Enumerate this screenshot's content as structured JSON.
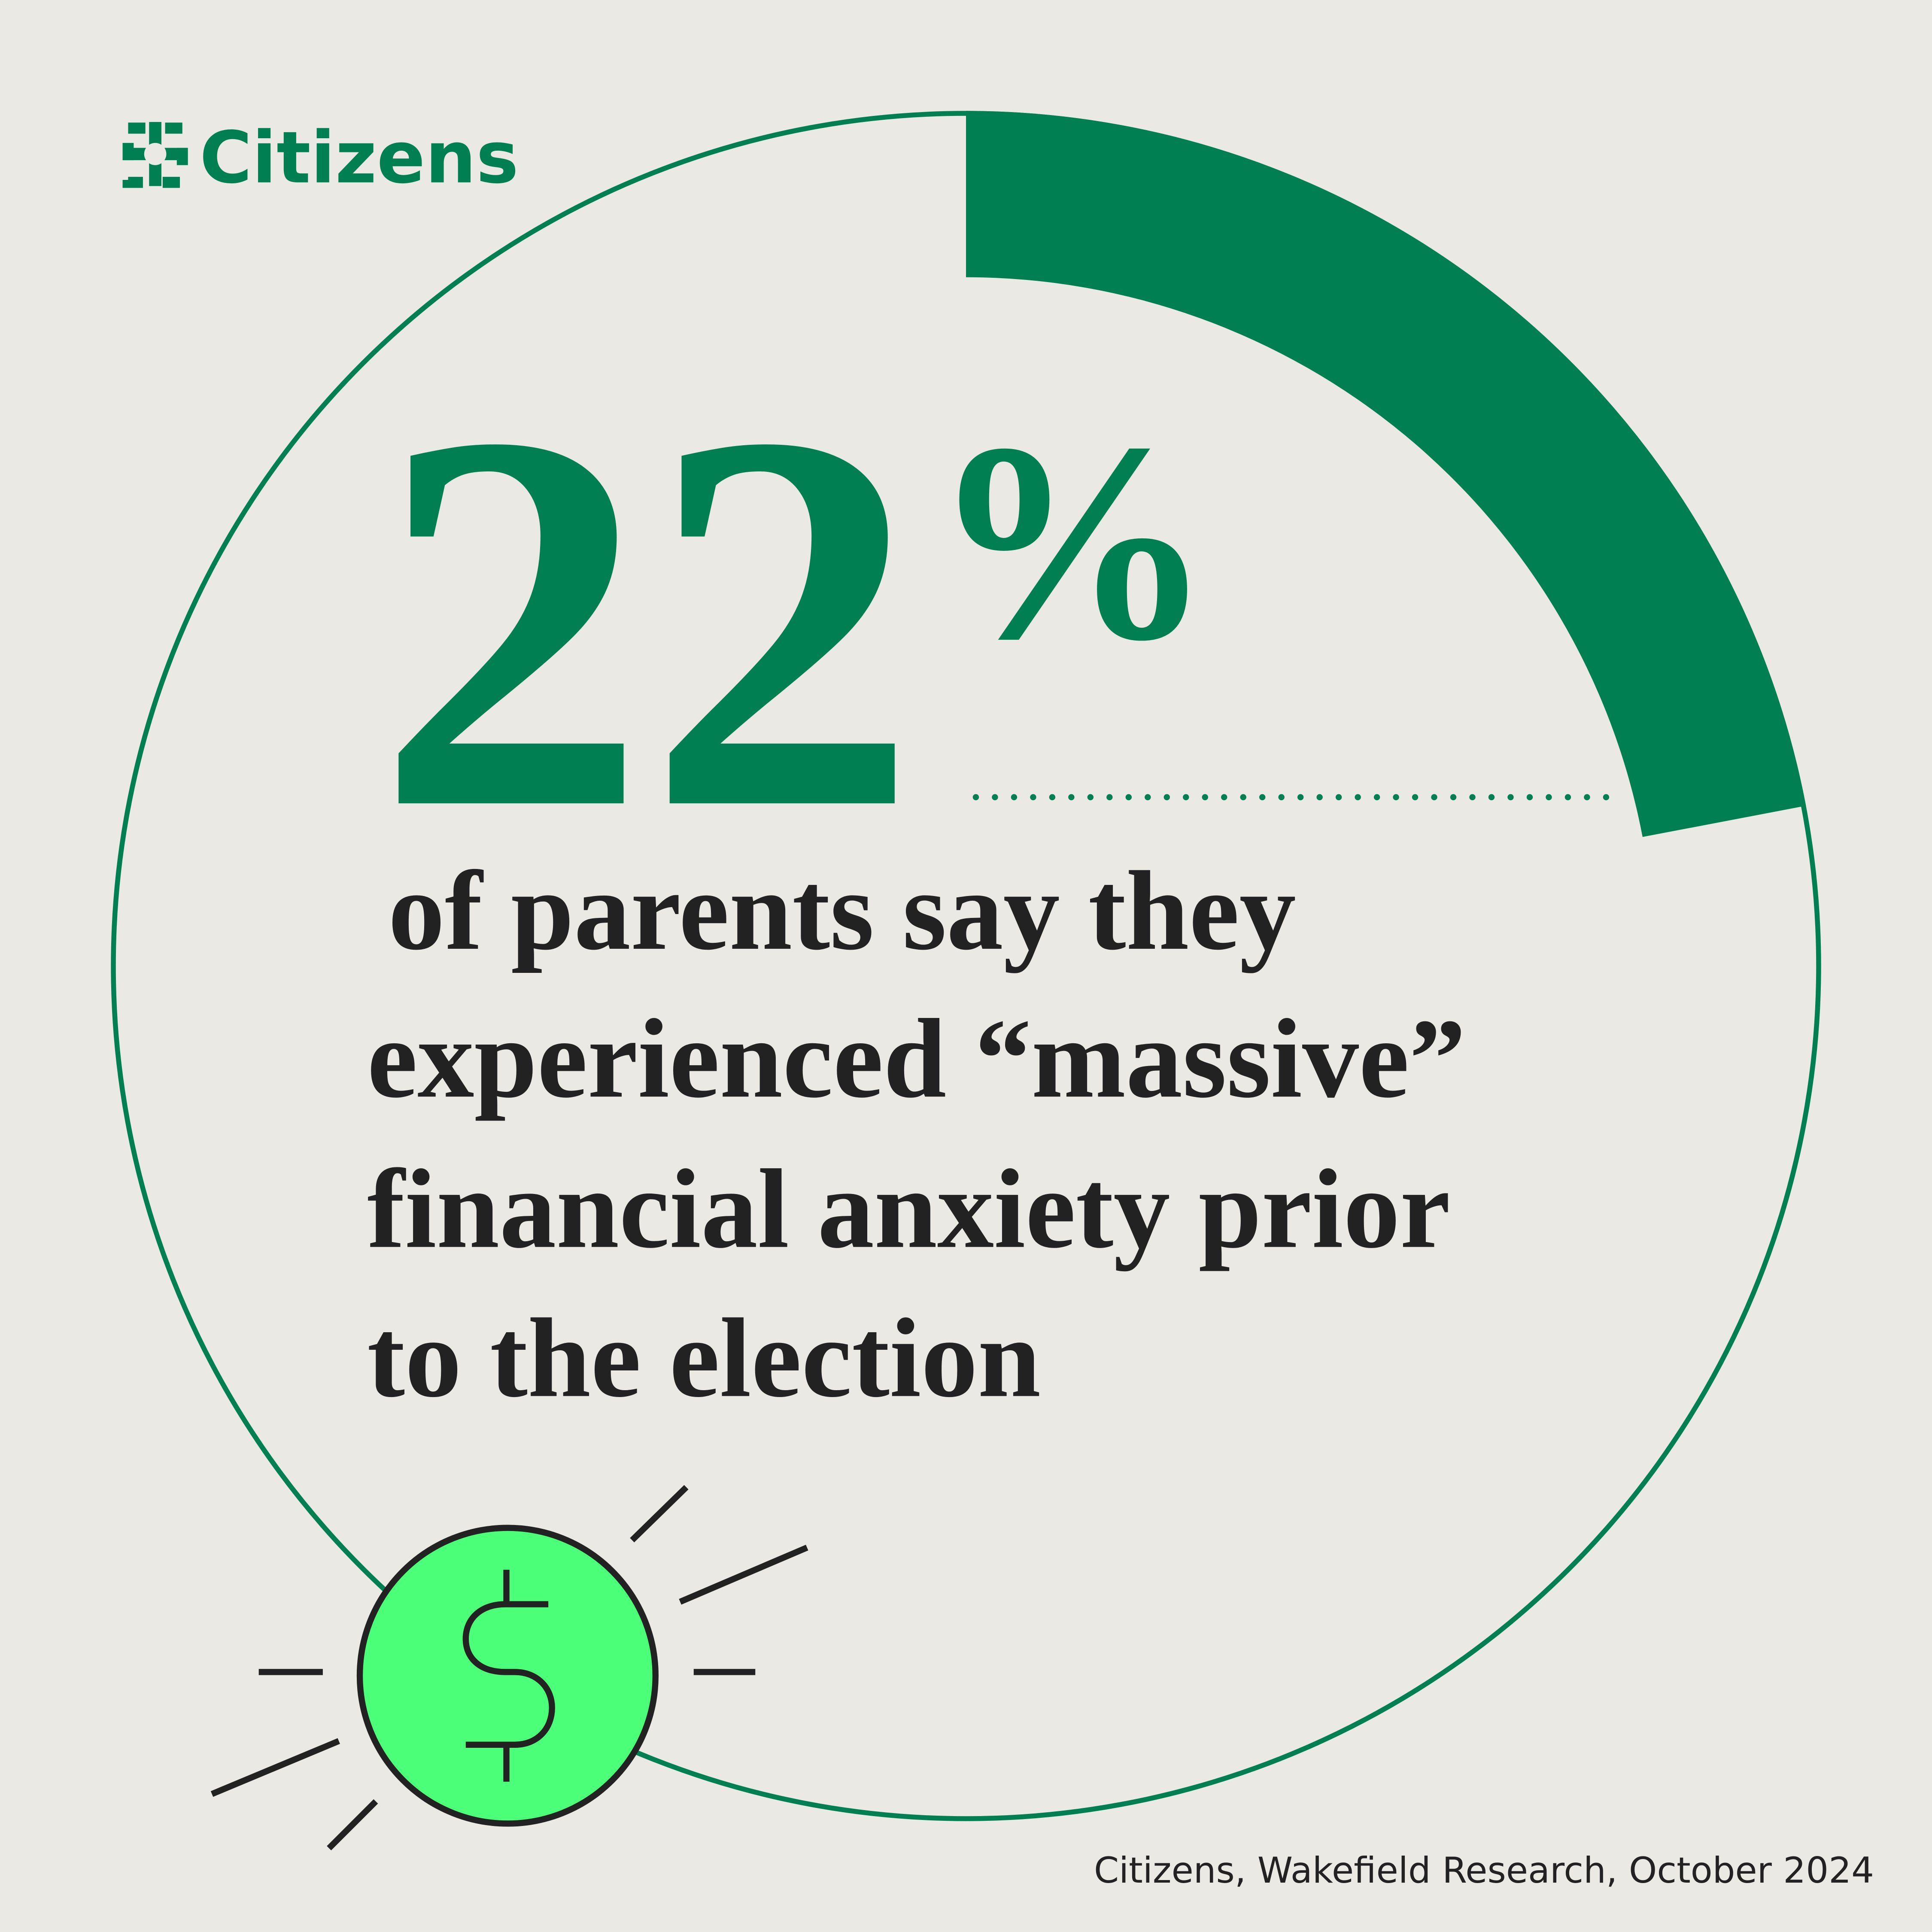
{
  "chart_data": {
    "type": "gauge",
    "brand": "Citizens",
    "values": [
      22
    ],
    "value_labels": [
      "22%"
    ],
    "color": "#008052",
    "description": [
      "of parents say they",
      "experienced “massive”",
      "financial anxiety prior",
      "to the election"
    ],
    "source": "Citizens, Wakefield Research, October 2024"
  }
}
